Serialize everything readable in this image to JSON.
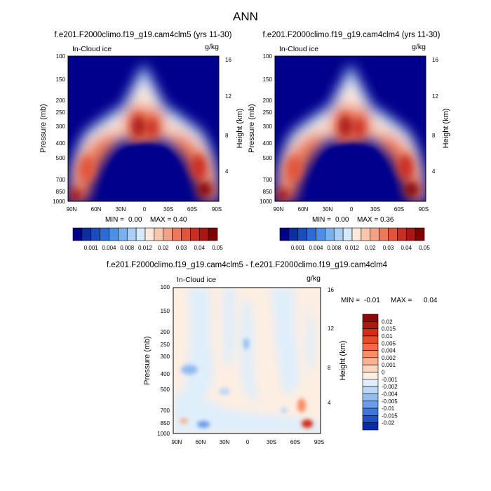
{
  "figure": {
    "title": "ANN"
  },
  "chart_data": [
    {
      "type": "heatmap",
      "title": "f.e201.F2000climo.f19_g19.cam4clm5 (yrs 11-30)",
      "field_label": "In-Cloud ice",
      "units": "g/kg",
      "xlabel": "",
      "ylabel": "Pressure (mb)",
      "ylabel_right": "Height (km)",
      "x_ticks": [
        "90N",
        "60N",
        "30N",
        "0",
        "30S",
        "60S",
        "90S"
      ],
      "y_ticks": [
        "100",
        "150",
        "200",
        "250",
        "300",
        "400",
        "500",
        "700",
        "850",
        "1000"
      ],
      "y_ticks_right": [
        "16",
        "12",
        "8",
        "4"
      ],
      "xlim": [
        90,
        -90
      ],
      "ylim": [
        1000,
        100
      ],
      "min_label": "MIN =",
      "min_value": "0.00",
      "max_label": "MAX =",
      "max_value": "0.40",
      "colorbar": {
        "orientation": "horizontal",
        "labels": [
          "0.001",
          "0.004",
          "0.008",
          "0.012",
          "0.02",
          "0.03",
          "0.04",
          "0.05"
        ],
        "colors": [
          "#00008c",
          "#0b2ea3",
          "#1a4cc0",
          "#2c6bd6",
          "#4b8fe6",
          "#78b0f0",
          "#a9cff7",
          "#d6e9fb",
          "#fbe8da",
          "#f8c6ad",
          "#f3a183",
          "#ec7a5a",
          "#e1543a",
          "#c92e22",
          "#a81712",
          "#800000"
        ]
      },
      "max_value_num": 0.4
    },
    {
      "type": "heatmap",
      "title": "f.e201.F2000climo.f19_g19.cam4clm4 (yrs 11-30)",
      "field_label": "In-Cloud ice",
      "units": "g/kg",
      "xlabel": "",
      "ylabel": "Pressure (mb)",
      "ylabel_right": "Height (km)",
      "x_ticks": [
        "90N",
        "60N",
        "30N",
        "0",
        "30S",
        "60S",
        "90S"
      ],
      "y_ticks": [
        "100",
        "150",
        "200",
        "250",
        "300",
        "400",
        "500",
        "700",
        "850",
        "1000"
      ],
      "y_ticks_right": [
        "16",
        "12",
        "8",
        "4"
      ],
      "xlim": [
        90,
        -90
      ],
      "ylim": [
        1000,
        100
      ],
      "min_label": "MIN =",
      "min_value": "0.00",
      "max_label": "MAX =",
      "max_value": "0.36",
      "colorbar": {
        "orientation": "horizontal",
        "labels": [
          "0.001",
          "0.004",
          "0.008",
          "0.012",
          "0.02",
          "0.03",
          "0.04",
          "0.05"
        ],
        "colors": [
          "#00008c",
          "#0b2ea3",
          "#1a4cc0",
          "#2c6bd6",
          "#4b8fe6",
          "#78b0f0",
          "#a9cff7",
          "#d6e9fb",
          "#fbe8da",
          "#f8c6ad",
          "#f3a183",
          "#ec7a5a",
          "#e1543a",
          "#c92e22",
          "#a81712",
          "#800000"
        ]
      },
      "max_value_num": 0.36
    },
    {
      "type": "heatmap",
      "title": "f.e201.F2000climo.f19_g19.cam4clm5 - f.e201.F2000climo.f19_g19.cam4clm4",
      "field_label": "In-Cloud ice",
      "units": "g/kg",
      "xlabel": "",
      "ylabel": "Pressure (mb)",
      "ylabel_right": "Height (km)",
      "x_ticks": [
        "90N",
        "60N",
        "30N",
        "0",
        "30S",
        "60S",
        "90S"
      ],
      "y_ticks": [
        "100",
        "150",
        "200",
        "250",
        "300",
        "400",
        "500",
        "700",
        "850",
        "1000"
      ],
      "y_ticks_right": [
        "16",
        "12",
        "8",
        "4"
      ],
      "xlim": [
        90,
        -90
      ],
      "ylim": [
        1000,
        100
      ],
      "min_label": "MIN =",
      "min_value": "-0.01",
      "max_label": "MAX =",
      "max_value": "0.04",
      "colorbar": {
        "orientation": "vertical",
        "labels": [
          "0.02",
          "0.015",
          "0.01",
          "0.005",
          "0.004",
          "0.002",
          "0.001",
          "0",
          "-0.001",
          "-0.002",
          "-0.004",
          "-0.005",
          "-0.01",
          "-0.015",
          "-0.02"
        ],
        "colors": [
          "#8b0a0a",
          "#b0170f",
          "#d42a18",
          "#e94b2a",
          "#f46a45",
          "#f98d68",
          "#fcb194",
          "#fdd5c0",
          "#fdeee2",
          "#dfeefb",
          "#bcd8f7",
          "#93bcf1",
          "#6a9ce9",
          "#3f76dd",
          "#1f50c8",
          "#0a2aa8"
        ]
      },
      "min_value_num": -0.01,
      "max_value_num": 0.04
    }
  ]
}
